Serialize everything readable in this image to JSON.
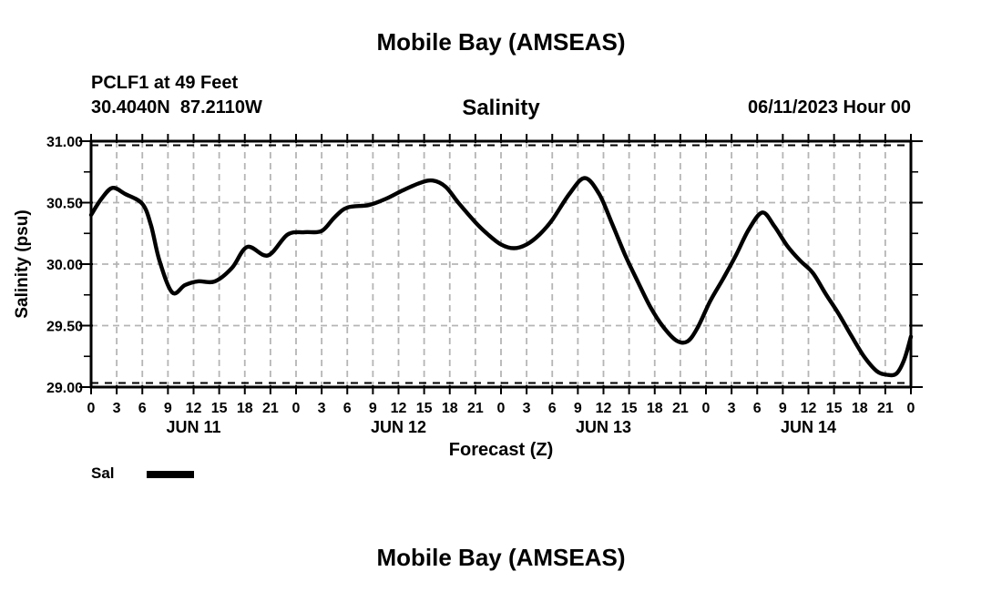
{
  "header": {
    "title": "Mobile Bay (AMSEAS)",
    "station": "PCLF1 at 49 Feet",
    "coordinates": "30.4040N  87.2110W",
    "variable": "Salinity",
    "run_date": "06/11/2023 Hour 00"
  },
  "axes": {
    "x_label": "Forecast (Z)",
    "y_label": "Salinity (psu)"
  },
  "legend": {
    "label": "Sal"
  },
  "footer": {
    "next_chart_title": "Mobile Bay (AMSEAS)"
  },
  "colors": {
    "background": "#ffffff",
    "line": "#000000",
    "axis": "#000000",
    "grid": "#b5b5b5",
    "edge_dash": "#000000"
  },
  "chart_data": {
    "type": "line",
    "title": "Mobile Bay (AMSEAS)",
    "subtitle": "Salinity",
    "station": "PCLF1 at 49 Feet",
    "location": "30.4040N 87.2110W",
    "forecast_run": "06/11/2023 Hour 00",
    "xlabel": "Forecast (Z)",
    "ylabel": "Salinity (psu)",
    "ylim": [
      29.0,
      31.0
    ],
    "y_major_step": 0.5,
    "y_minor_step": 0.25,
    "y_tick_labels": [
      "29.00",
      "29.50",
      "30.00",
      "30.50",
      "31.00"
    ],
    "x_hours_range": [
      0,
      96
    ],
    "x_tick_step_hours": 3,
    "x_hour_label_modulo": 24,
    "grid": "dashed",
    "legend_position": "bottom-left",
    "day_labels": [
      {
        "label": "JUN 11",
        "center_hour": 12
      },
      {
        "label": "JUN 12",
        "center_hour": 36
      },
      {
        "label": "JUN 13",
        "center_hour": 60
      },
      {
        "label": "JUN 14",
        "center_hour": 84
      }
    ],
    "series": [
      {
        "name": "Sal",
        "color": "#000000",
        "units": "psu",
        "points": [
          [
            0,
            30.4
          ],
          [
            1.2,
            30.53
          ],
          [
            2.5,
            30.62
          ],
          [
            4,
            30.57
          ],
          [
            6,
            30.49
          ],
          [
            7,
            30.32
          ],
          [
            8,
            30.03
          ],
          [
            9.5,
            29.77
          ],
          [
            11,
            29.83
          ],
          [
            12.5,
            29.86
          ],
          [
            14.5,
            29.86
          ],
          [
            16.5,
            29.97
          ],
          [
            18.3,
            30.14
          ],
          [
            20.7,
            30.07
          ],
          [
            23,
            30.24
          ],
          [
            25,
            30.26
          ],
          [
            27,
            30.27
          ],
          [
            28.5,
            30.38
          ],
          [
            30,
            30.46
          ],
          [
            32.5,
            30.48
          ],
          [
            34.5,
            30.53
          ],
          [
            36.5,
            30.6
          ],
          [
            38.5,
            30.66
          ],
          [
            40,
            30.68
          ],
          [
            41.5,
            30.63
          ],
          [
            43,
            30.5
          ],
          [
            45,
            30.34
          ],
          [
            46.5,
            30.24
          ],
          [
            48,
            30.16
          ],
          [
            49.5,
            30.13
          ],
          [
            51,
            30.16
          ],
          [
            52.5,
            30.24
          ],
          [
            54,
            30.36
          ],
          [
            56,
            30.57
          ],
          [
            57.8,
            30.7
          ],
          [
            59.5,
            30.57
          ],
          [
            61,
            30.33
          ],
          [
            62.5,
            30.08
          ],
          [
            64,
            29.86
          ],
          [
            65.5,
            29.65
          ],
          [
            67,
            29.49
          ],
          [
            68.5,
            29.38
          ],
          [
            69.8,
            29.37
          ],
          [
            71,
            29.48
          ],
          [
            72.5,
            29.7
          ],
          [
            74,
            29.88
          ],
          [
            75.5,
            30.07
          ],
          [
            77,
            30.28
          ],
          [
            78.6,
            30.42
          ],
          [
            80,
            30.31
          ],
          [
            81.5,
            30.15
          ],
          [
            83,
            30.03
          ],
          [
            84.5,
            29.93
          ],
          [
            86,
            29.76
          ],
          [
            87.5,
            29.6
          ],
          [
            89,
            29.42
          ],
          [
            90.5,
            29.25
          ],
          [
            92,
            29.13
          ],
          [
            93.2,
            29.1
          ],
          [
            94.3,
            29.11
          ],
          [
            95.2,
            29.22
          ],
          [
            96,
            29.41
          ]
        ]
      }
    ]
  }
}
